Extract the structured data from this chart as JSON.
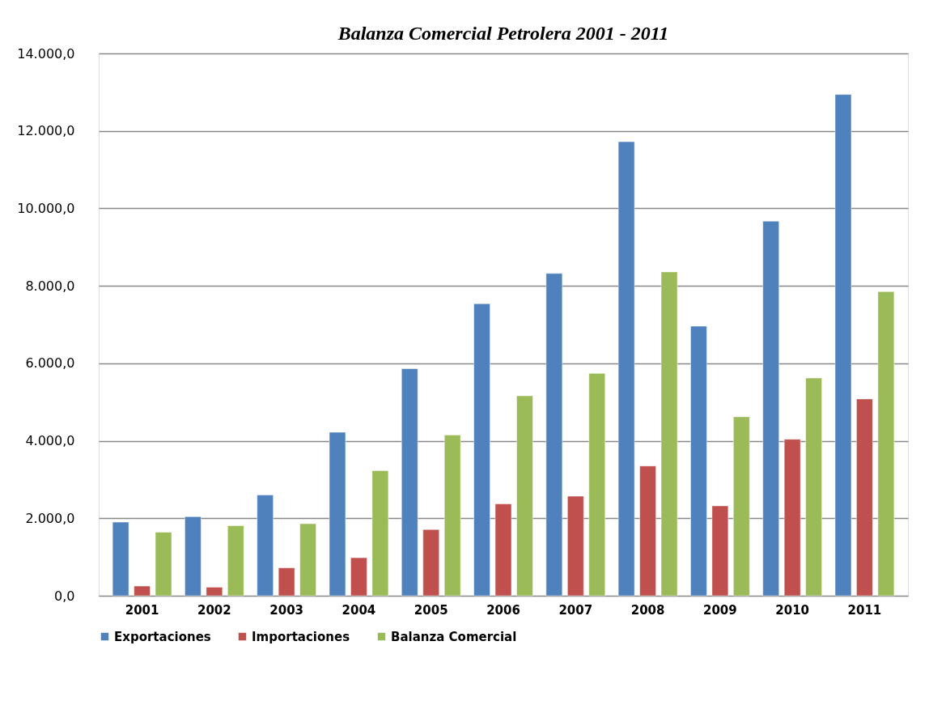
{
  "chart_data": {
    "type": "bar",
    "title": "Balanza Comercial Petrolera 2001 - 2011",
    "categories": [
      "2001",
      "2002",
      "2003",
      "2004",
      "2005",
      "2006",
      "2007",
      "2008",
      "2009",
      "2010",
      "2011"
    ],
    "series": [
      {
        "name": "Exportaciones",
        "color": "#4f81bd",
        "values": [
          1900,
          2040,
          2600,
          4220,
          5860,
          7540,
          8320,
          11720,
          6960,
          9670,
          12940
        ]
      },
      {
        "name": "Importaciones",
        "color": "#c0504d",
        "values": [
          250,
          220,
          720,
          980,
          1710,
          2370,
          2570,
          3350,
          2320,
          4040,
          5080
        ]
      },
      {
        "name": "Balanza Comercial",
        "color": "#9bbb59",
        "values": [
          1640,
          1810,
          1860,
          3230,
          4150,
          5160,
          5740,
          8360,
          4620,
          5620,
          7850
        ]
      }
    ],
    "ylim": [
      0,
      14000
    ],
    "yticks": [
      {
        "value": 0,
        "label": "0,0"
      },
      {
        "value": 2000,
        "label": "2.000,0"
      },
      {
        "value": 4000,
        "label": "4.000,0"
      },
      {
        "value": 6000,
        "label": "6.000,0"
      },
      {
        "value": 8000,
        "label": "8.000,0"
      },
      {
        "value": 10000,
        "label": "10.000,0"
      },
      {
        "value": 12000,
        "label": "12.000,0"
      },
      {
        "value": 14000,
        "label": "14.000,0"
      }
    ],
    "grid": "y",
    "legend": "bottom"
  }
}
